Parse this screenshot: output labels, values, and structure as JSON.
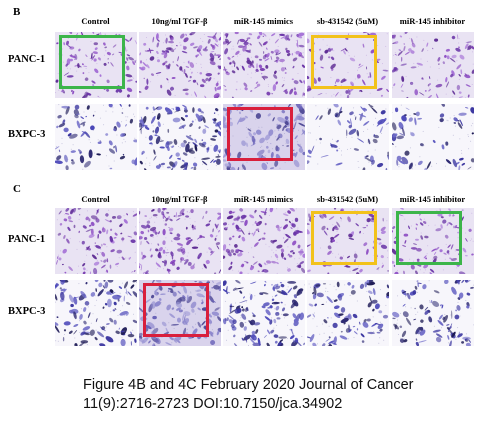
{
  "panel_b": {
    "letter": "B",
    "columns": [
      "Control",
      "10ng/ml TGF-β",
      "miR-145 mimics",
      "sb-431542 (5uM)",
      "miR-145 inhibitor"
    ],
    "rows": [
      "PANC-1",
      "BXPC-3"
    ]
  },
  "panel_c": {
    "letter": "C",
    "columns": [
      "Control",
      "10ng/ml TGF-β",
      "miR-145 mimics",
      "sb-431542 (5uM)",
      "miR-145 inhibitor"
    ],
    "rows": [
      "PANC-1",
      "BXPC-3"
    ]
  },
  "caption": {
    "line1": "Figure 4B and 4C February 2020 Journal of Cancer",
    "line2": "11(9):2716-2723  DOI:10.7150/jca.34902"
  },
  "tiles": {
    "b": [
      [
        {
          "density": 0.55,
          "style": "panc"
        },
        {
          "density": 0.8,
          "style": "panc"
        },
        {
          "density": 0.9,
          "style": "panc"
        },
        {
          "density": 0.3,
          "style": "panc"
        },
        {
          "density": 0.45,
          "style": "panc"
        }
      ],
      [
        {
          "density": 0.3,
          "style": "bxpc"
        },
        {
          "density": 0.85,
          "style": "bxpc"
        },
        {
          "density": 0.75,
          "style": "bxpc-lav"
        },
        {
          "density": 0.25,
          "style": "bxpc"
        },
        {
          "density": 0.2,
          "style": "bxpc"
        }
      ]
    ],
    "c": [
      [
        {
          "density": 0.55,
          "style": "panc"
        },
        {
          "density": 0.85,
          "style": "panc"
        },
        {
          "density": 0.8,
          "style": "panc"
        },
        {
          "density": 0.4,
          "style": "panc"
        },
        {
          "density": 0.45,
          "style": "panc"
        }
      ],
      [
        {
          "density": 0.6,
          "style": "bxpc"
        },
        {
          "density": 0.85,
          "style": "bxpc-lav"
        },
        {
          "density": 0.8,
          "style": "bxpc"
        },
        {
          "density": 0.45,
          "style": "bxpc"
        },
        {
          "density": 0.5,
          "style": "bxpc"
        }
      ]
    ]
  },
  "highlights": {
    "b": [
      {
        "row": 0,
        "col": 0,
        "color": "#3cb54a"
      },
      {
        "row": 0,
        "col": 3,
        "color": "#f2c21b"
      },
      {
        "row": 1,
        "col": 2,
        "color": "#d91f3c"
      }
    ],
    "c": [
      {
        "row": 0,
        "col": 3,
        "color": "#f2c21b"
      },
      {
        "row": 0,
        "col": 4,
        "color": "#3cb54a"
      },
      {
        "row": 1,
        "col": 1,
        "color": "#d91f3c"
      }
    ]
  }
}
